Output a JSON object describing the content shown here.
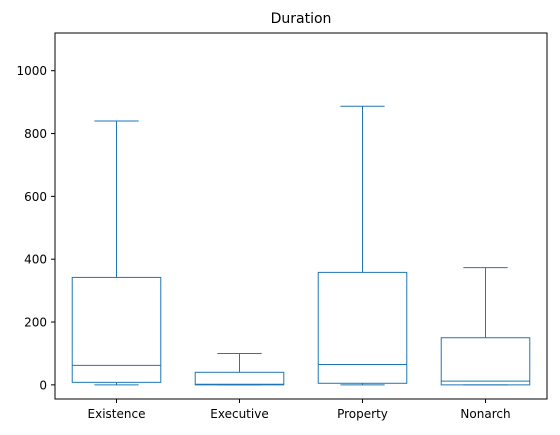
{
  "chart_data": {
    "type": "box",
    "title": "Duration",
    "xlabel": "",
    "ylabel": "",
    "ylim": [
      -45,
      1120
    ],
    "yticks": [
      0,
      200,
      400,
      600,
      800,
      1000
    ],
    "grid": false,
    "color": "#1f77b4",
    "categories": [
      "Existence",
      "Executive",
      "Property",
      "Nonarch"
    ],
    "boxes": [
      {
        "whislo": 0,
        "q1": 8,
        "med": 62,
        "q3": 342,
        "whishi": 840
      },
      {
        "whislo": 0,
        "q1": 0,
        "med": 2,
        "q3": 40,
        "whishi": 100
      },
      {
        "whislo": 0,
        "q1": 5,
        "med": 65,
        "q3": 358,
        "whishi": 887
      },
      {
        "whislo": 0,
        "q1": 0,
        "med": 12,
        "q3": 150,
        "whishi": 373
      }
    ]
  }
}
